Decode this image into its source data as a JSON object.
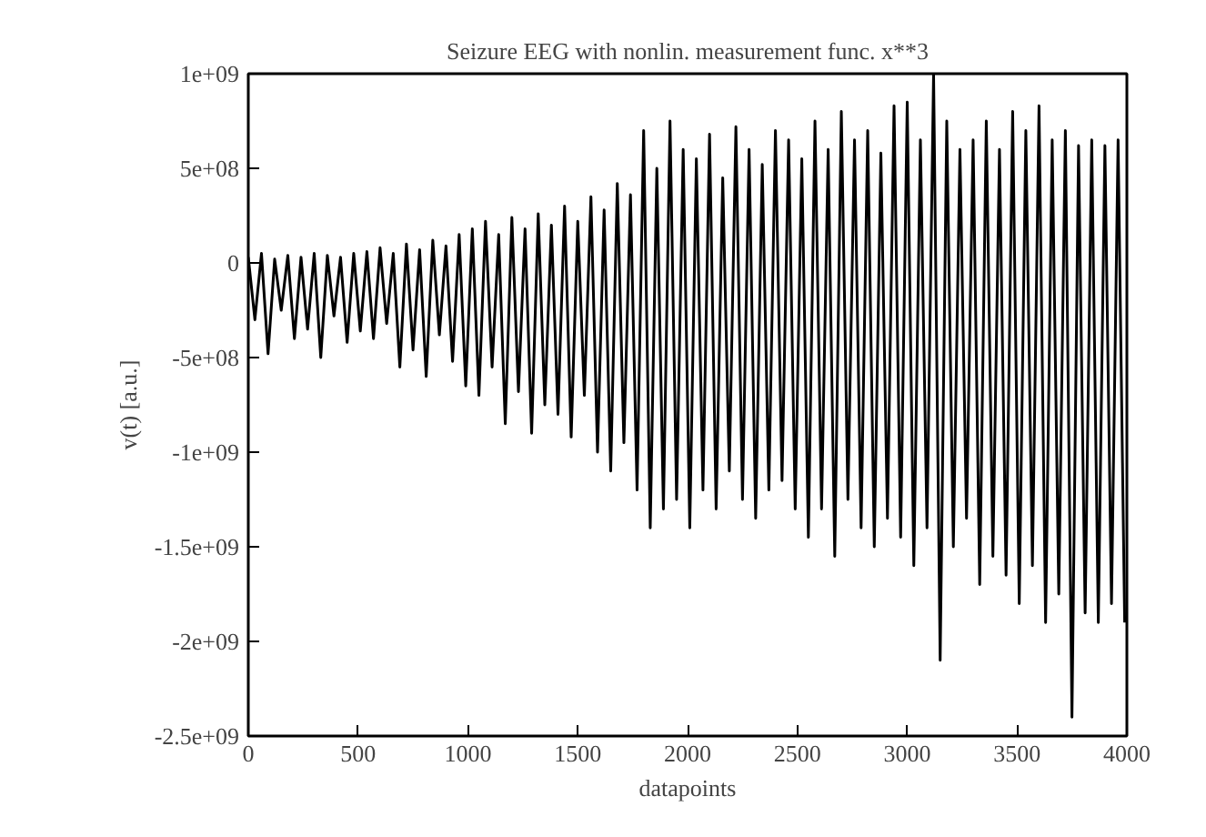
{
  "chart_data": {
    "type": "line",
    "title": "Seizure EEG with nonlin. measurement func. x**3",
    "xlabel": "datapoints",
    "ylabel": "v(t) [a.u.]",
    "x": [
      0,
      30,
      60,
      90,
      120,
      150,
      180,
      210,
      240,
      270,
      300,
      330,
      360,
      390,
      420,
      450,
      480,
      510,
      540,
      570,
      600,
      630,
      660,
      690,
      720,
      750,
      780,
      810,
      840,
      870,
      900,
      930,
      960,
      990,
      1020,
      1050,
      1080,
      1110,
      1140,
      1170,
      1200,
      1230,
      1260,
      1290,
      1320,
      1350,
      1380,
      1410,
      1440,
      1470,
      1500,
      1530,
      1560,
      1590,
      1620,
      1650,
      1680,
      1710,
      1740,
      1770,
      1800,
      1830,
      1860,
      1890,
      1920,
      1950,
      1980,
      2010,
      2040,
      2070,
      2100,
      2130,
      2160,
      2190,
      2220,
      2250,
      2280,
      2310,
      2340,
      2370,
      2400,
      2430,
      2460,
      2490,
      2520,
      2550,
      2580,
      2610,
      2640,
      2670,
      2700,
      2730,
      2760,
      2790,
      2820,
      2850,
      2880,
      2910,
      2940,
      2970,
      3000,
      3030,
      3060,
      3090,
      3120,
      3150,
      3180,
      3210,
      3240,
      3270,
      3300,
      3330,
      3360,
      3390,
      3420,
      3450,
      3480,
      3510,
      3540,
      3570,
      3600,
      3630,
      3660,
      3690,
      3720,
      3750,
      3780,
      3810,
      3840,
      3870,
      3900,
      3930,
      3960,
      3990
    ],
    "series": [
      {
        "color": "#000000",
        "values": [
          30000000.0,
          -300000000.0,
          50000000.0,
          -480000000.0,
          20000000.0,
          -250000000.0,
          40000000.0,
          -400000000.0,
          30000000.0,
          -350000000.0,
          50000000.0,
          -500000000.0,
          40000000.0,
          -280000000.0,
          30000000.0,
          -420000000.0,
          50000000.0,
          -360000000.0,
          60000000.0,
          -400000000.0,
          80000000.0,
          -320000000.0,
          50000000.0,
          -550000000.0,
          100000000.0,
          -460000000.0,
          70000000.0,
          -600000000.0,
          120000000.0,
          -380000000.0,
          90000000.0,
          -520000000.0,
          150000000.0,
          -650000000.0,
          180000000.0,
          -700000000.0,
          220000000.0,
          -550000000.0,
          150000000.0,
          -850000000.0,
          240000000.0,
          -680000000.0,
          180000000.0,
          -900000000.0,
          260000000.0,
          -750000000.0,
          200000000.0,
          -800000000.0,
          300000000.0,
          -920000000.0,
          220000000.0,
          -700000000.0,
          350000000.0,
          -1000000000.0,
          280000000.0,
          -1100000000.0,
          420000000.0,
          -950000000.0,
          360000000.0,
          -1200000000.0,
          700000000.0,
          -1400000000.0,
          500000000.0,
          -1300000000.0,
          750000000.0,
          -1250000000.0,
          600000000.0,
          -1400000000.0,
          550000000.0,
          -1200000000.0,
          680000000.0,
          -1300000000.0,
          450000000.0,
          -1100000000.0,
          720000000.0,
          -1250000000.0,
          600000000.0,
          -1350000000.0,
          520000000.0,
          -1200000000.0,
          700000000.0,
          -1150000000.0,
          650000000.0,
          -1300000000.0,
          550000000.0,
          -1450000000.0,
          750000000.0,
          -1300000000.0,
          600000000.0,
          -1550000000.0,
          800000000.0,
          -1250000000.0,
          650000000.0,
          -1400000000.0,
          700000000.0,
          -1500000000.0,
          580000000.0,
          -1350000000.0,
          830000000.0,
          -1450000000.0,
          850000000.0,
          -1600000000.0,
          650000000.0,
          -1400000000.0,
          1000000000.0,
          -2100000000.0,
          750000000.0,
          -1500000000.0,
          600000000.0,
          -1350000000.0,
          650000000.0,
          -1700000000.0,
          750000000.0,
          -1550000000.0,
          600000000.0,
          -1650000000.0,
          800000000.0,
          -1800000000.0,
          700000000.0,
          -1600000000.0,
          830000000.0,
          -1900000000.0,
          650000000.0,
          -1750000000.0,
          700000000.0,
          -2400000000.0,
          620000000.0,
          -1850000000.0,
          650000000.0,
          -1900000000.0,
          620000000.0,
          -1800000000.0,
          650000000.0,
          -1900000000.0
        ]
      }
    ],
    "xlim": [
      0,
      4000
    ],
    "ylim": [
      -2500000000.0,
      1000000000.0
    ],
    "xticks": [
      0,
      500,
      1000,
      1500,
      2000,
      2500,
      3000,
      3500,
      4000
    ],
    "yticks": [
      {
        "value": 1000000000.0,
        "label": "1e+09"
      },
      {
        "value": 500000000.0,
        "label": "5e+08"
      },
      0,
      {
        "value": -500000000.0,
        "label": "-5e+08"
      },
      {
        "value": -1000000000.0,
        "label": "-1e+09"
      },
      {
        "value": -1500000000.0,
        "label": "-1.5e+09"
      },
      {
        "value": -2000000000.0,
        "label": "-2e+09"
      },
      {
        "value": -2500000000.0,
        "label": "-2.5e+09"
      }
    ],
    "line_style": "solid"
  }
}
